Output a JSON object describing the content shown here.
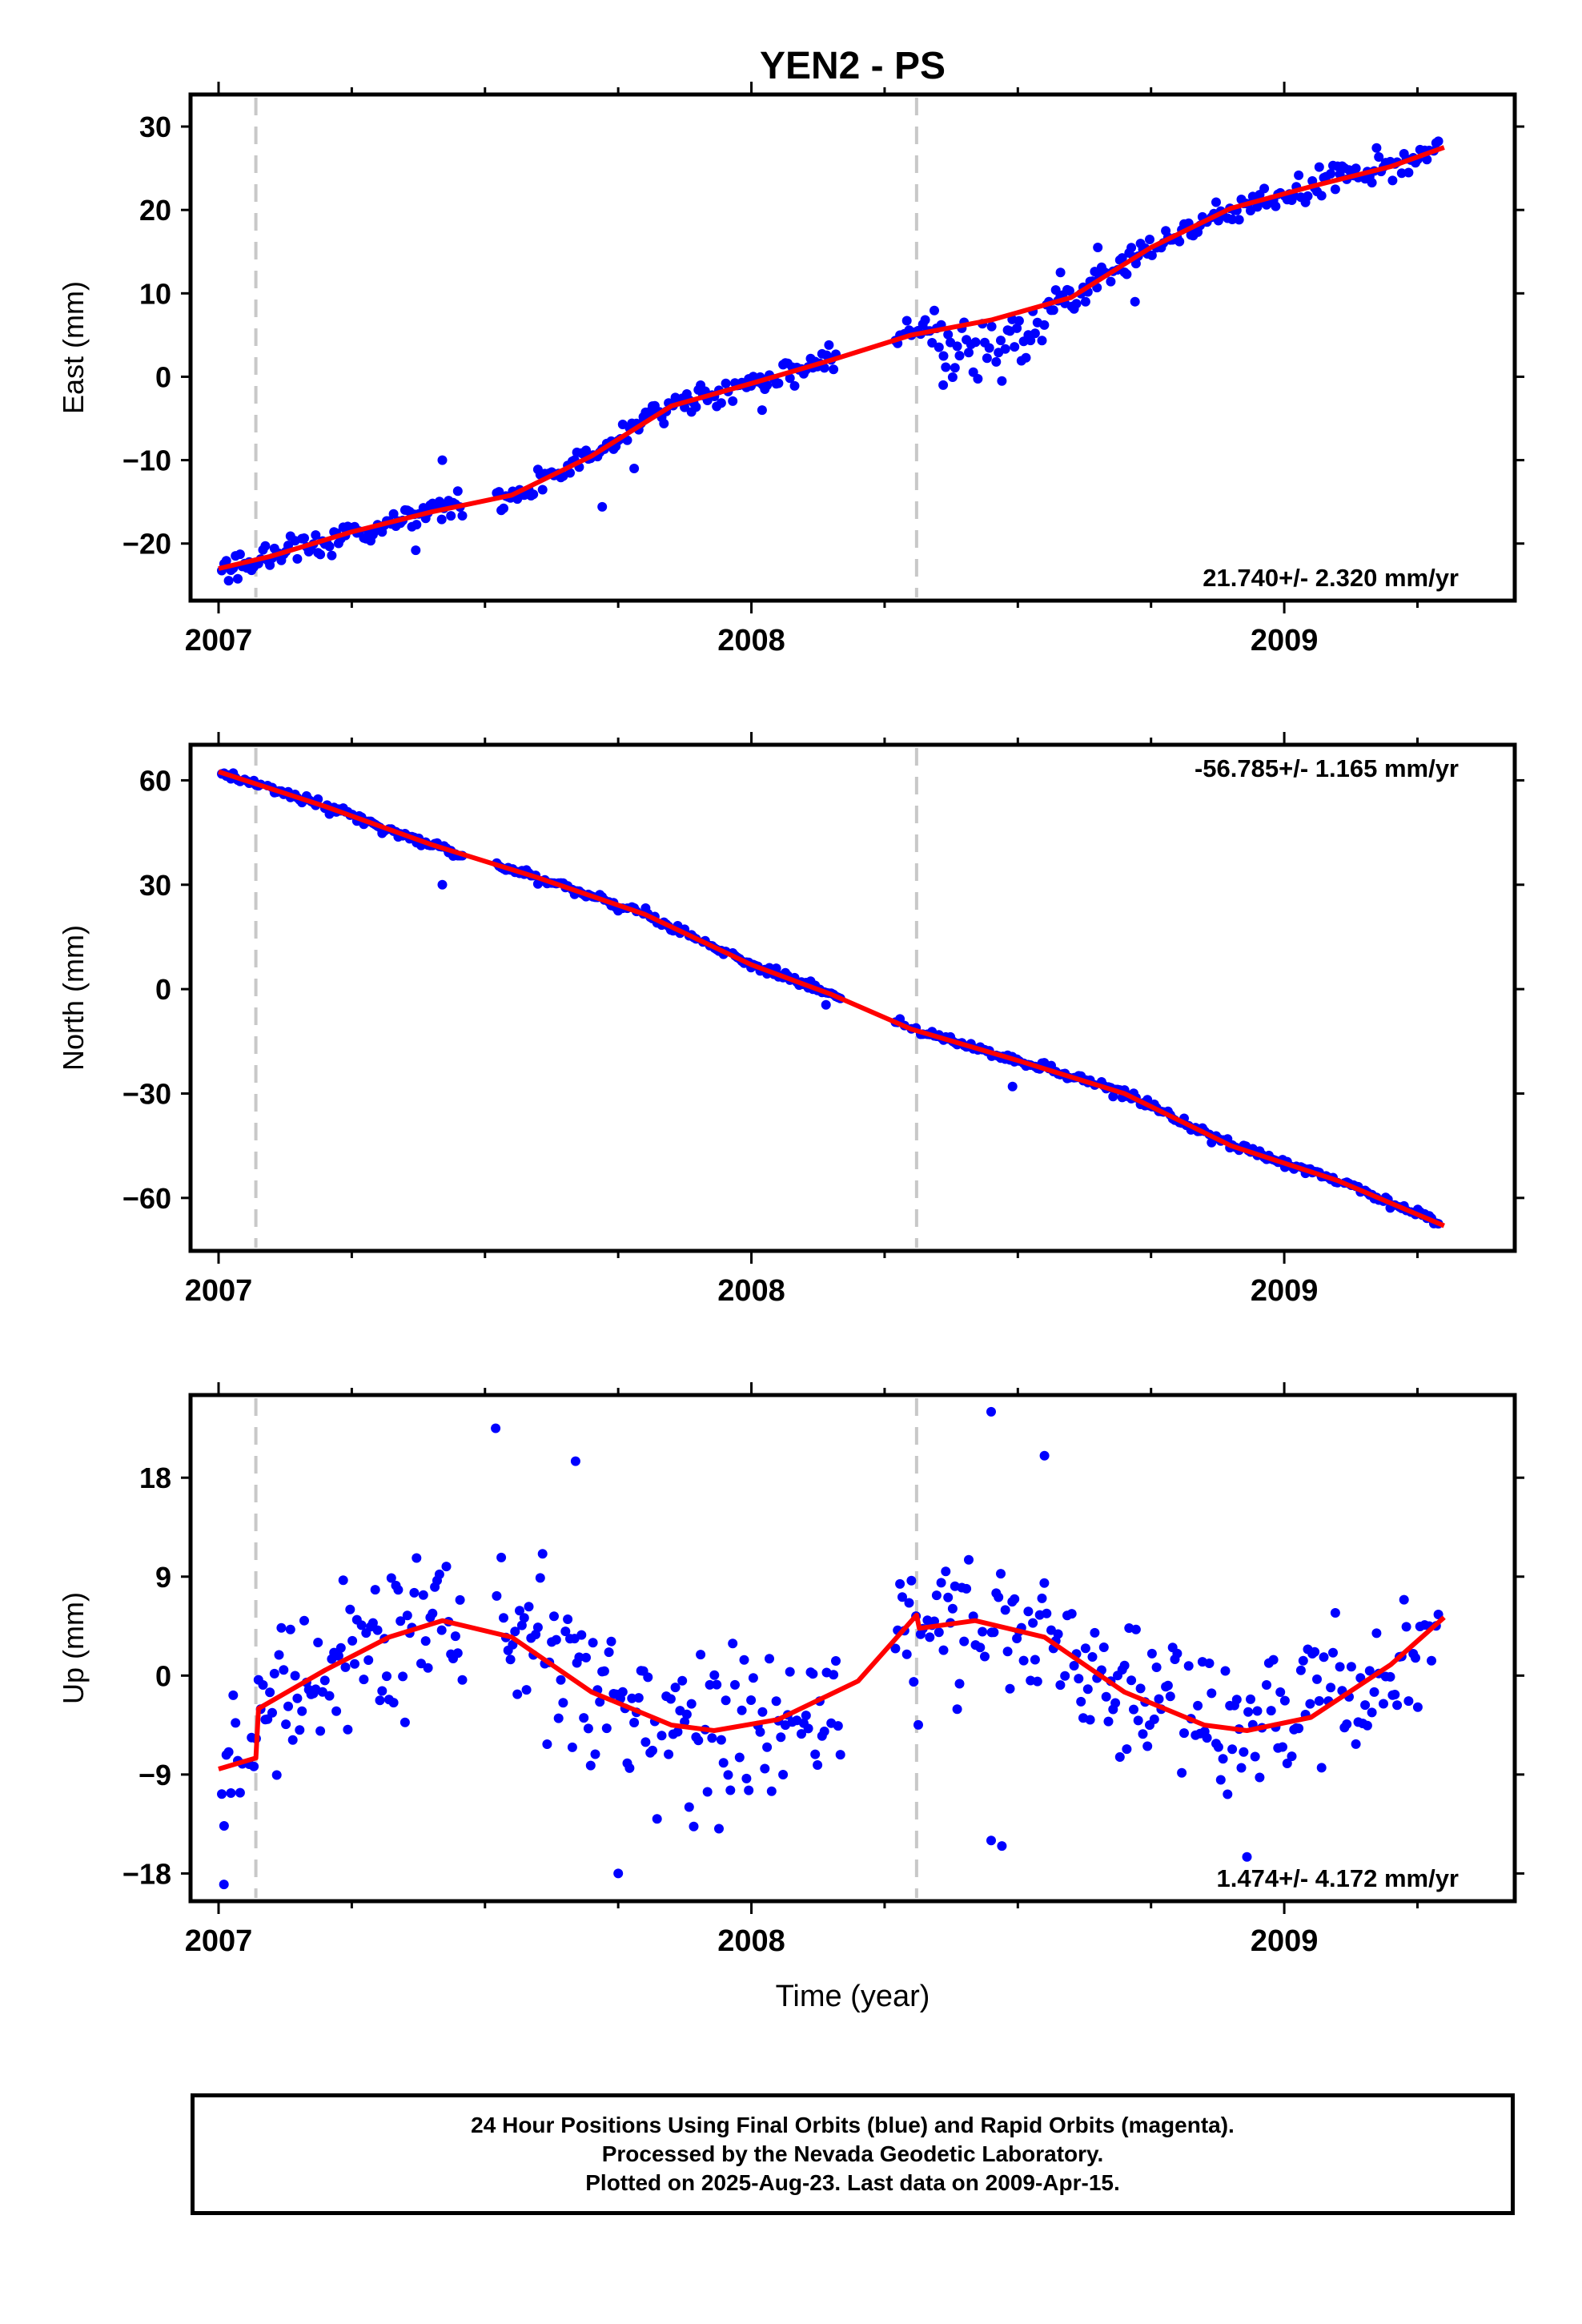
{
  "title": "YEN2 - PS",
  "colors": {
    "data": "#0000ff",
    "model": "#ff0000",
    "steps": "#c8c8c8",
    "frame": "#000000"
  },
  "xaxis": {
    "label": "Time (year)",
    "min": 2007.0,
    "max": 2009.38,
    "ticks": [
      2007,
      2008,
      2009
    ]
  },
  "chart_data": [
    {
      "type": "scatter",
      "name": "east",
      "ylabel": "East (mm)",
      "ylim": [
        -25.5,
        32.5
      ],
      "yticks": [
        30,
        20,
        10,
        0,
        -10,
        -20
      ],
      "ytick_labels": [
        "30",
        "20",
        "10",
        "0",
        "−10",
        "−20"
      ],
      "rate_text": "21.740+/- 2.320 mm/yr",
      "rate_position": "bottom-right",
      "steps": [
        2007.07,
        2008.31
      ],
      "gaps": [
        [
          2007.46,
          2007.52
        ],
        [
          2008.17,
          2008.27
        ]
      ],
      "fit_points": [
        [
          2007.0,
          -23.0
        ],
        [
          2007.1,
          -21.5
        ],
        [
          2007.25,
          -18.6
        ],
        [
          2007.4,
          -16.2
        ],
        [
          2007.55,
          -14.2
        ],
        [
          2007.7,
          -9.5
        ],
        [
          2007.85,
          -3.5
        ],
        [
          2008.0,
          -0.8
        ],
        [
          2008.15,
          2.0
        ],
        [
          2008.3,
          5.0
        ],
        [
          2008.45,
          6.8
        ],
        [
          2008.6,
          9.5
        ],
        [
          2008.75,
          15.5
        ],
        [
          2008.9,
          20.2
        ],
        [
          2009.05,
          22.8
        ],
        [
          2009.2,
          25.2
        ],
        [
          2009.3,
          27.5
        ]
      ],
      "scatter_sd": 1.5,
      "wobbles": [
        [
          2008.35,
          2008.55,
          -2.5,
          2.8
        ]
      ],
      "outliers": [
        [
          2007.37,
          -20.8
        ],
        [
          2007.42,
          -10
        ],
        [
          2007.72,
          -15.6
        ],
        [
          2007.78,
          -11
        ],
        [
          2008.02,
          -4
        ],
        [
          2008.36,
          -1
        ],
        [
          2008.47,
          -0.5
        ],
        [
          2008.65,
          15.5
        ],
        [
          2008.72,
          9
        ],
        [
          2008.58,
          12.5
        ]
      ]
    },
    {
      "type": "scatter",
      "name": "north",
      "ylabel": "North (mm)",
      "ylim": [
        -72,
        67
      ],
      "yticks": [
        60,
        30,
        0,
        -30,
        -60
      ],
      "ytick_labels": [
        "60",
        "30",
        "0",
        "−30",
        "−60"
      ],
      "rate_text": "-56.785+/- 1.165 mm/yr",
      "rate_position": "top-right",
      "steps": [
        2007.07,
        2008.31
      ],
      "gaps": [
        [
          2007.46,
          2007.52
        ],
        [
          2008.17,
          2008.27
        ]
      ],
      "fit_points": [
        [
          2007.0,
          62.5
        ],
        [
          2007.2,
          52.5
        ],
        [
          2007.4,
          41.5
        ],
        [
          2007.6,
          32
        ],
        [
          2007.8,
          21.5
        ],
        [
          2008.0,
          7
        ],
        [
          2008.15,
          -1.5
        ],
        [
          2008.3,
          -11.5
        ],
        [
          2008.5,
          -20.5
        ],
        [
          2008.7,
          -30
        ],
        [
          2008.9,
          -45
        ],
        [
          2009.1,
          -55
        ],
        [
          2009.3,
          -68
        ]
      ],
      "scatter_sd": 1.1,
      "wobbles": [],
      "outliers": [
        [
          2007.42,
          30
        ],
        [
          2008.14,
          -4.5
        ],
        [
          2008.49,
          -28
        ]
      ]
    },
    {
      "type": "scatter",
      "name": "up",
      "ylabel": "Up (mm)",
      "ylim": [
        -19.5,
        24.5
      ],
      "yticks": [
        18,
        9,
        0,
        -9,
        -18
      ],
      "ytick_labels": [
        "18",
        "9",
        "0",
        "−9",
        "−18"
      ],
      "rate_text": "1.474+/- 4.172 mm/yr",
      "rate_position": "bottom-right",
      "steps": [
        2007.07,
        2008.31
      ],
      "gaps": [
        [
          2007.46,
          2007.52
        ],
        [
          2008.17,
          2008.27
        ]
      ],
      "fit_points": [
        [
          2007.0,
          -8.5
        ],
        [
          2007.07,
          -7.5
        ],
        [
          2007.075,
          -3
        ],
        [
          2007.2,
          0.5
        ],
        [
          2007.32,
          3.5
        ],
        [
          2007.42,
          5
        ],
        [
          2007.55,
          3.5
        ],
        [
          2007.7,
          -1.5
        ],
        [
          2007.85,
          -4.5
        ],
        [
          2007.93,
          -5
        ],
        [
          2008.05,
          -4
        ],
        [
          2008.2,
          -0.5
        ],
        [
          2008.31,
          5.5
        ],
        [
          2008.315,
          4.3
        ],
        [
          2008.42,
          5
        ],
        [
          2008.55,
          3.5
        ],
        [
          2008.7,
          -1.5
        ],
        [
          2008.85,
          -4.5
        ],
        [
          2008.93,
          -5
        ],
        [
          2009.05,
          -3.8
        ],
        [
          2009.2,
          1
        ],
        [
          2009.3,
          5.3
        ]
      ],
      "scatter_sd": 5.5,
      "wobbles": [],
      "outliers": [
        [
          2007.01,
          -19
        ],
        [
          2007.52,
          22.5
        ],
        [
          2007.67,
          19.5
        ],
        [
          2007.75,
          -18
        ],
        [
          2008.45,
          24
        ],
        [
          2008.55,
          20
        ],
        [
          2008.47,
          -15.5
        ],
        [
          2008.93,
          -16.5
        ],
        [
          2008.45,
          -15
        ]
      ]
    }
  ],
  "footer": {
    "line1": "24 Hour Positions Using Final Orbits (blue) and Rapid Orbits (magenta).",
    "line2": "Processed by the Nevada Geodetic Laboratory.",
    "line3": "Plotted on 2025-Aug-23. Last data on 2009-Apr-15."
  }
}
